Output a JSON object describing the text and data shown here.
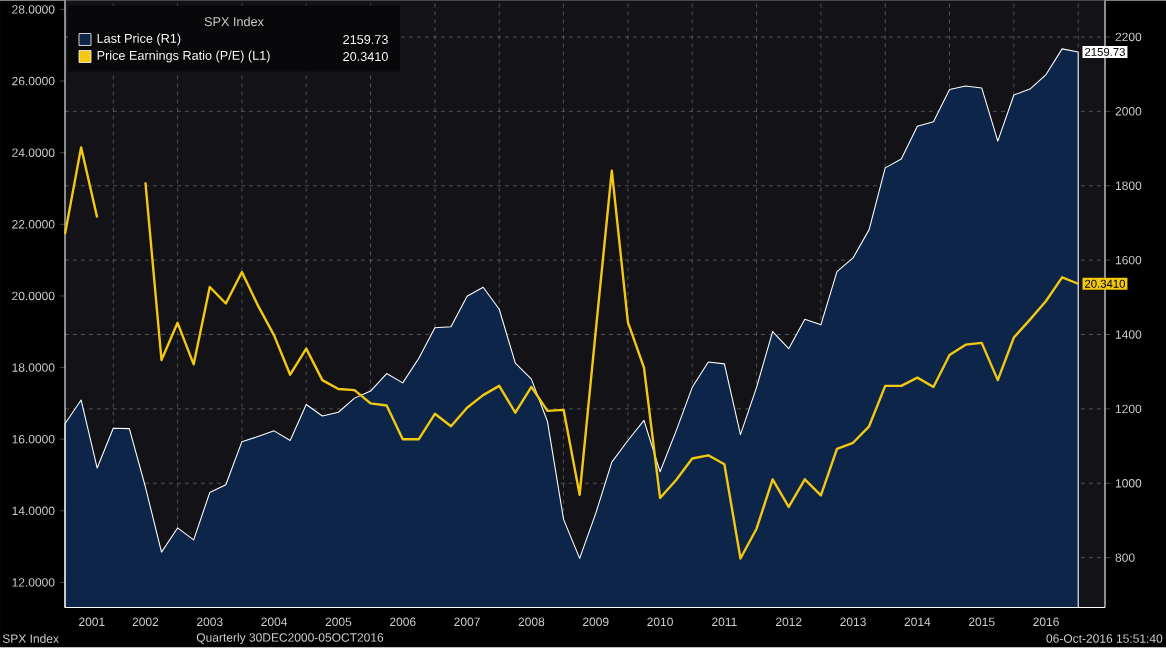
{
  "chart_data": {
    "type": "line",
    "legend_title": "SPX Index",
    "x": [
      "2001-03",
      "2001-06",
      "2001-09",
      "2001-12",
      "2002-03",
      "2002-06",
      "2002-09",
      "2002-12",
      "2003-03",
      "2003-06",
      "2003-09",
      "2003-12",
      "2004-03",
      "2004-06",
      "2004-09",
      "2004-12",
      "2005-03",
      "2005-06",
      "2005-09",
      "2005-12",
      "2006-03",
      "2006-06",
      "2006-09",
      "2006-12",
      "2007-03",
      "2007-06",
      "2007-09",
      "2007-12",
      "2008-03",
      "2008-06",
      "2008-09",
      "2008-12",
      "2009-03",
      "2009-06",
      "2009-09",
      "2009-12",
      "2010-03",
      "2010-06",
      "2010-09",
      "2010-12",
      "2011-03",
      "2011-06",
      "2011-09",
      "2011-12",
      "2012-03",
      "2012-06",
      "2012-09",
      "2012-12",
      "2013-03",
      "2013-06",
      "2013-09",
      "2013-12",
      "2014-03",
      "2014-06",
      "2014-09",
      "2014-12",
      "2015-03",
      "2015-06",
      "2015-09",
      "2015-12",
      "2016-03",
      "2016-06",
      "2016-09",
      "2016-12"
    ],
    "series": [
      {
        "name": "Last Price  (R1)",
        "type": "area",
        "axis": "y2",
        "color": "#0c2548",
        "values": [
          1160,
          1224,
          1041,
          1148,
          1147,
          990,
          815,
          880,
          848,
          975,
          996,
          1112,
          1126,
          1141,
          1115,
          1212,
          1181,
          1191,
          1229,
          1248,
          1295,
          1270,
          1336,
          1418,
          1421,
          1503,
          1527,
          1468,
          1323,
          1280,
          1166,
          903,
          798,
          919,
          1057,
          1115,
          1169,
          1031,
          1141,
          1258,
          1326,
          1321,
          1131,
          1258,
          1408,
          1362,
          1441,
          1426,
          1569,
          1606,
          1682,
          1848,
          1872,
          1960,
          1972,
          2059,
          2068,
          2063,
          1920,
          2044,
          2060,
          2099,
          2168,
          2159.73
        ],
        "value_labels": [
          null,
          null,
          null,
          null,
          null,
          null,
          null,
          null,
          null,
          null,
          null,
          null,
          null,
          null,
          null,
          null,
          null,
          null,
          null,
          null,
          null,
          null,
          null,
          null,
          null,
          null,
          null,
          null,
          null,
          null,
          null,
          null,
          null,
          null,
          null,
          null,
          null,
          null,
          null,
          null,
          null,
          null,
          null,
          null,
          null,
          null,
          null,
          null,
          null,
          null,
          null,
          null,
          null,
          null,
          null,
          null,
          null,
          null,
          null,
          null,
          null,
          null,
          null,
          "2159.73"
        ]
      },
      {
        "name": "Price Earnings Ratio (P/E)  (L1)",
        "axis": "y",
        "color": "#f2c811",
        "values": [
          21.73,
          24.15,
          22.19,
          null,
          null,
          23.17,
          18.21,
          19.25,
          18.09,
          20.25,
          19.79,
          20.67,
          19.73,
          18.9,
          17.8,
          18.53,
          17.65,
          17.4,
          17.37,
          17.0,
          16.94,
          16.0,
          16.0,
          16.71,
          16.36,
          16.88,
          17.23,
          17.49,
          16.74,
          17.46,
          16.79,
          16.82,
          14.45,
          19.02,
          23.5,
          19.27,
          18.0,
          14.36,
          14.86,
          15.46,
          15.55,
          15.3,
          12.67,
          13.5,
          14.88,
          14.11,
          14.88,
          14.43,
          15.73,
          15.9,
          16.36,
          17.49,
          17.49,
          17.72,
          17.46,
          18.35,
          18.64,
          18.69,
          17.65,
          18.84,
          19.34,
          19.86,
          20.52,
          20.341
        ],
        "value_labels": [
          null,
          null,
          null,
          null,
          null,
          null,
          null,
          null,
          null,
          null,
          null,
          null,
          null,
          null,
          null,
          null,
          null,
          null,
          null,
          null,
          null,
          null,
          null,
          null,
          null,
          null,
          null,
          null,
          null,
          null,
          null,
          null,
          null,
          null,
          null,
          null,
          null,
          null,
          null,
          null,
          null,
          null,
          null,
          null,
          null,
          null,
          null,
          null,
          null,
          null,
          null,
          null,
          null,
          null,
          null,
          null,
          null,
          null,
          null,
          null,
          null,
          null,
          null,
          "20.3410"
        ]
      }
    ],
    "xlim": [
      "2001-03",
      "2017-05"
    ],
    "xticks": [
      {
        "value": "2001-08",
        "label": "2001"
      },
      {
        "value": "2001-12",
        "label": null
      },
      {
        "value": "2002-06",
        "label": "2002"
      },
      {
        "value": "2002-12",
        "label": null
      },
      {
        "value": "2003-06",
        "label": "2003"
      },
      {
        "value": "2003-12",
        "label": null
      },
      {
        "value": "2004-06",
        "label": "2004"
      },
      {
        "value": "2004-12",
        "label": null
      },
      {
        "value": "2005-06",
        "label": "2005"
      },
      {
        "value": "2005-12",
        "label": null
      },
      {
        "value": "2006-06",
        "label": "2006"
      },
      {
        "value": "2006-12",
        "label": null
      },
      {
        "value": "2007-06",
        "label": "2007"
      },
      {
        "value": "2007-12",
        "label": null
      },
      {
        "value": "2008-06",
        "label": "2008"
      },
      {
        "value": "2008-12",
        "label": null
      },
      {
        "value": "2009-06",
        "label": "2009"
      },
      {
        "value": "2009-12",
        "label": null
      },
      {
        "value": "2010-06",
        "label": "2010"
      },
      {
        "value": "2010-12",
        "label": null
      },
      {
        "value": "2011-06",
        "label": "2011"
      },
      {
        "value": "2011-12",
        "label": null
      },
      {
        "value": "2012-06",
        "label": "2012"
      },
      {
        "value": "2012-12",
        "label": null
      },
      {
        "value": "2013-06",
        "label": "2013"
      },
      {
        "value": "2013-12",
        "label": null
      },
      {
        "value": "2014-06",
        "label": "2014"
      },
      {
        "value": "2014-12",
        "label": null
      },
      {
        "value": "2015-06",
        "label": "2015"
      },
      {
        "value": "2015-12",
        "label": null
      },
      {
        "value": "2016-06",
        "label": "2016"
      },
      {
        "value": "2016-12",
        "label": null
      }
    ],
    "ylim": [
      11.3,
      28.25
    ],
    "yticks": [
      {
        "value": 12,
        "label": "12.0000"
      },
      {
        "value": 14,
        "label": "14.0000"
      },
      {
        "value": 16,
        "label": "16.0000"
      },
      {
        "value": 18,
        "label": "18.0000"
      },
      {
        "value": 20,
        "label": "20.0000"
      },
      {
        "value": 22,
        "label": "22.0000"
      },
      {
        "value": 24,
        "label": "24.0000"
      },
      {
        "value": 26,
        "label": "26.0000"
      },
      {
        "value": 28,
        "label": "28.0000"
      }
    ],
    "y2lim": [
      666,
      2298
    ],
    "y2ticks": [
      800,
      1000,
      1200,
      1400,
      1600,
      1800,
      2000,
      2200
    ],
    "grid": true,
    "legend": "top left",
    "annotations": [
      "SPX Index",
      "Quarterly 30DEC2000-05OCT2016",
      "06-Oct-2016 15:51:40",
      "2159.73",
      "20.3410"
    ]
  }
}
